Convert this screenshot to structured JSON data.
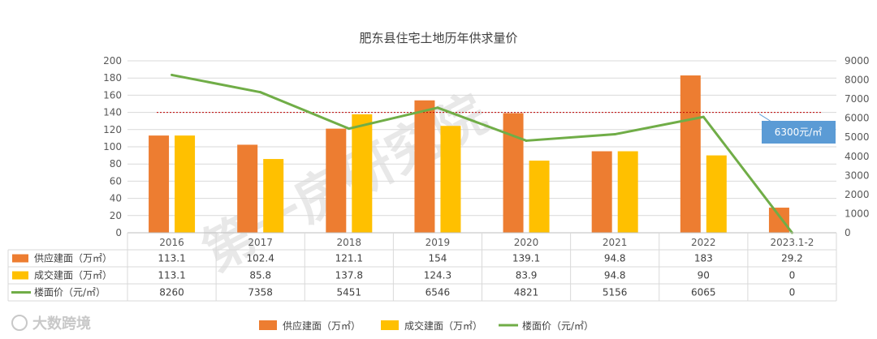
{
  "chart_data": {
    "type": "bar",
    "title": "肥东县住宅土地历年供求量价",
    "categories": [
      "2016",
      "2017",
      "2018",
      "2019",
      "2020",
      "2021",
      "2022",
      "2023.1-2"
    ],
    "series": [
      {
        "name": "供应建面（万㎡）",
        "kind": "bar",
        "axis": "left",
        "color": "#ED7D31",
        "values": [
          113.1,
          102.4,
          121.1,
          154,
          139.1,
          94.8,
          183,
          29.2
        ]
      },
      {
        "name": "成交建面（万㎡）",
        "kind": "bar",
        "axis": "left",
        "color": "#FFC000",
        "values": [
          113.1,
          85.8,
          137.8,
          124.3,
          83.9,
          94.8,
          90,
          0
        ]
      },
      {
        "name": "楼面价（元/㎡）",
        "kind": "line",
        "axis": "right",
        "color": "#70AD47",
        "values": [
          8260,
          7358,
          5451,
          6546,
          4821,
          5156,
          6065,
          0
        ]
      }
    ],
    "table_values": [
      [
        "113.1",
        "102.4",
        "121.1",
        "154",
        "139.1",
        "94.8",
        "183",
        "29.2"
      ],
      [
        "113.1",
        "85.8",
        "137.8",
        "124.3",
        "83.9",
        "94.8",
        "90",
        "0"
      ],
      [
        "8260",
        "7358",
        "5451",
        "6546",
        "4821",
        "5156",
        "6065",
        "0"
      ]
    ],
    "y_left": {
      "min": 0,
      "max": 200,
      "ticks": [
        "0",
        "20",
        "40",
        "60",
        "80",
        "100",
        "120",
        "140",
        "160",
        "180",
        "200"
      ]
    },
    "y_right": {
      "min": 0,
      "max": 9000,
      "ticks": [
        "0",
        "1000",
        "2000",
        "3000",
        "4000",
        "5000",
        "6000",
        "7000",
        "8000",
        "9000"
      ]
    },
    "reference_line": {
      "value": 6300,
      "axis": "right",
      "color": "#C00000",
      "label": "6300元/㎡"
    },
    "callout_color": "#5B9BD5",
    "legend_position": "bottom",
    "data_table": true
  },
  "watermark": "第一房研究院",
  "logo_text": "大数跨境"
}
